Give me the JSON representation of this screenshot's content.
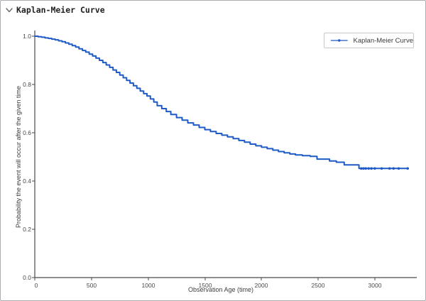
{
  "header": {
    "title": "Kaplan-Meier Curve",
    "collapse_icon": "chevron-down"
  },
  "chart_data": {
    "type": "line",
    "title": "",
    "xlabel": "Observation Age (time)",
    "ylabel": "Probability the event will occur after the given time",
    "xlim": [
      0,
      3370
    ],
    "ylim": [
      0,
      1.0
    ],
    "x_ticks": [
      0,
      500,
      1000,
      1500,
      2000,
      2500,
      3000
    ],
    "y_ticks": [
      "0.0",
      "0.2",
      "0.4",
      "0.6",
      "0.8",
      "1.0"
    ],
    "grid": false,
    "line_color": "#1e5bc4",
    "axis_color": "#4a4a4a",
    "legend": {
      "position": "upper right",
      "entries": [
        "Kaplan-Meier Curve"
      ]
    },
    "series": [
      {
        "name": "Kaplan-Meier Curve",
        "step": "after",
        "points": [
          [
            0,
            1.0
          ],
          [
            30,
            0.998
          ],
          [
            60,
            0.996
          ],
          [
            90,
            0.993
          ],
          [
            120,
            0.991
          ],
          [
            150,
            0.988
          ],
          [
            180,
            0.985
          ],
          [
            210,
            0.981
          ],
          [
            240,
            0.977
          ],
          [
            270,
            0.972
          ],
          [
            300,
            0.967
          ],
          [
            330,
            0.961
          ],
          [
            360,
            0.955
          ],
          [
            390,
            0.948
          ],
          [
            420,
            0.941
          ],
          [
            450,
            0.934
          ],
          [
            480,
            0.926
          ],
          [
            510,
            0.918
          ],
          [
            540,
            0.909
          ],
          [
            570,
            0.9
          ],
          [
            600,
            0.891
          ],
          [
            630,
            0.881
          ],
          [
            660,
            0.871
          ],
          [
            690,
            0.86
          ],
          [
            720,
            0.85
          ],
          [
            750,
            0.839
          ],
          [
            780,
            0.828
          ],
          [
            810,
            0.817
          ],
          [
            840,
            0.806
          ],
          [
            870,
            0.795
          ],
          [
            900,
            0.784
          ],
          [
            930,
            0.773
          ],
          [
            960,
            0.762
          ],
          [
            990,
            0.752
          ],
          [
            1020,
            0.74
          ],
          [
            1050,
            0.727
          ],
          [
            1080,
            0.712
          ],
          [
            1120,
            0.7
          ],
          [
            1160,
            0.688
          ],
          [
            1200,
            0.676
          ],
          [
            1250,
            0.663
          ],
          [
            1300,
            0.652
          ],
          [
            1350,
            0.641
          ],
          [
            1400,
            0.632
          ],
          [
            1450,
            0.622
          ],
          [
            1500,
            0.613
          ],
          [
            1550,
            0.605
          ],
          [
            1600,
            0.597
          ],
          [
            1650,
            0.59
          ],
          [
            1700,
            0.583
          ],
          [
            1750,
            0.576
          ],
          [
            1800,
            0.568
          ],
          [
            1850,
            0.561
          ],
          [
            1900,
            0.553
          ],
          [
            1950,
            0.546
          ],
          [
            2000,
            0.54
          ],
          [
            2050,
            0.534
          ],
          [
            2100,
            0.528
          ],
          [
            2150,
            0.522
          ],
          [
            2200,
            0.517
          ],
          [
            2250,
            0.512
          ],
          [
            2300,
            0.508
          ],
          [
            2360,
            0.505
          ],
          [
            2430,
            0.502
          ],
          [
            2490,
            0.491
          ],
          [
            2600,
            0.483
          ],
          [
            2660,
            0.478
          ],
          [
            2730,
            0.467
          ],
          [
            2860,
            0.452
          ],
          [
            3290,
            0.452
          ]
        ],
        "tail_markers": [
          [
            2880,
            0.452
          ],
          [
            2900,
            0.452
          ],
          [
            2920,
            0.452
          ],
          [
            2945,
            0.452
          ],
          [
            2970,
            0.452
          ],
          [
            3000,
            0.452
          ],
          [
            3060,
            0.452
          ],
          [
            3130,
            0.452
          ],
          [
            3165,
            0.452
          ],
          [
            3210,
            0.452
          ],
          [
            3290,
            0.452
          ]
        ]
      }
    ]
  }
}
